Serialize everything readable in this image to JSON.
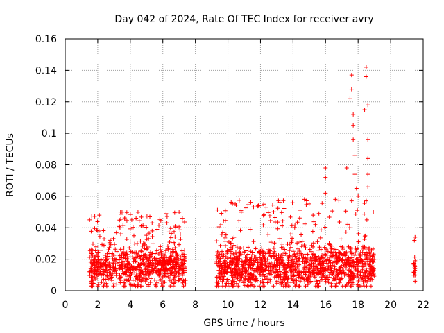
{
  "chart_data": {
    "type": "scatter",
    "title": "Day 042 of 2024, Rate Of TEC Index for receiver avry",
    "xlabel": "GPS time / hours",
    "ylabel": "ROTI / TECUs",
    "xlim": [
      0,
      22
    ],
    "ylim": [
      0,
      0.16
    ],
    "x_ticks": [
      0,
      2,
      4,
      6,
      8,
      10,
      12,
      14,
      16,
      18,
      20,
      22
    ],
    "y_ticks": [
      0,
      0.02,
      0.04,
      0.06,
      0.08,
      0.1,
      0.12,
      0.14,
      0.16
    ],
    "x_tick_labels": [
      "0",
      "2",
      "4",
      "6",
      "8",
      "10",
      "12",
      "14",
      "16",
      "18",
      "20",
      "22"
    ],
    "y_tick_labels": [
      "0",
      "0.02",
      "0.04",
      "0.06",
      "0.08",
      "0.1",
      "0.12",
      "0.14",
      "0.16"
    ],
    "grid": true,
    "legend": "none",
    "marker": "+",
    "color": "#ff0000",
    "point_density_segments": [
      {
        "x_start": 1.5,
        "x_end": 3.2,
        "y_base": 0.013,
        "y_spread": 0.012,
        "y_peak": 0.048
      },
      {
        "x_start": 3.3,
        "x_end": 7.4,
        "y_base": 0.015,
        "y_spread": 0.012,
        "y_peak": 0.05
      },
      {
        "x_start": 9.3,
        "x_end": 19.0,
        "y_base": 0.015,
        "y_spread": 0.013,
        "y_peak": 0.058
      },
      {
        "x_start": 21.4,
        "x_end": 21.5,
        "y_base": 0.012,
        "y_spread": 0.006,
        "y_peak": 0.034
      }
    ],
    "notable_points": [
      {
        "x": 16.0,
        "y": 0.078
      },
      {
        "x": 16.0,
        "y": 0.072
      },
      {
        "x": 16.0,
        "y": 0.062
      },
      {
        "x": 17.3,
        "y": 0.078
      },
      {
        "x": 17.5,
        "y": 0.122
      },
      {
        "x": 17.6,
        "y": 0.137
      },
      {
        "x": 17.6,
        "y": 0.128
      },
      {
        "x": 17.7,
        "y": 0.105
      },
      {
        "x": 17.7,
        "y": 0.096
      },
      {
        "x": 17.8,
        "y": 0.086
      },
      {
        "x": 17.8,
        "y": 0.074
      },
      {
        "x": 17.6,
        "y": 0.057
      },
      {
        "x": 17.9,
        "y": 0.065
      },
      {
        "x": 18.0,
        "y": 0.06
      },
      {
        "x": 17.7,
        "y": 0.112
      },
      {
        "x": 18.5,
        "y": 0.142
      },
      {
        "x": 18.5,
        "y": 0.136
      },
      {
        "x": 18.6,
        "y": 0.118
      },
      {
        "x": 18.6,
        "y": 0.096
      },
      {
        "x": 18.6,
        "y": 0.084
      },
      {
        "x": 18.6,
        "y": 0.074
      },
      {
        "x": 18.6,
        "y": 0.066
      },
      {
        "x": 18.5,
        "y": 0.057
      },
      {
        "x": 18.4,
        "y": 0.115
      },
      {
        "x": 12.2,
        "y": 0.055
      },
      {
        "x": 14.7,
        "y": 0.058
      },
      {
        "x": 3.4,
        "y": 0.05
      },
      {
        "x": 2.1,
        "y": 0.048
      },
      {
        "x": 6.2,
        "y": 0.049
      },
      {
        "x": 7.2,
        "y": 0.046
      },
      {
        "x": 16.6,
        "y": 0.058
      },
      {
        "x": 21.5,
        "y": 0.034
      },
      {
        "x": 21.5,
        "y": 0.019
      },
      {
        "x": 21.5,
        "y": 0.014
      },
      {
        "x": 21.5,
        "y": 0.01
      },
      {
        "x": 21.5,
        "y": 0.006
      }
    ]
  }
}
